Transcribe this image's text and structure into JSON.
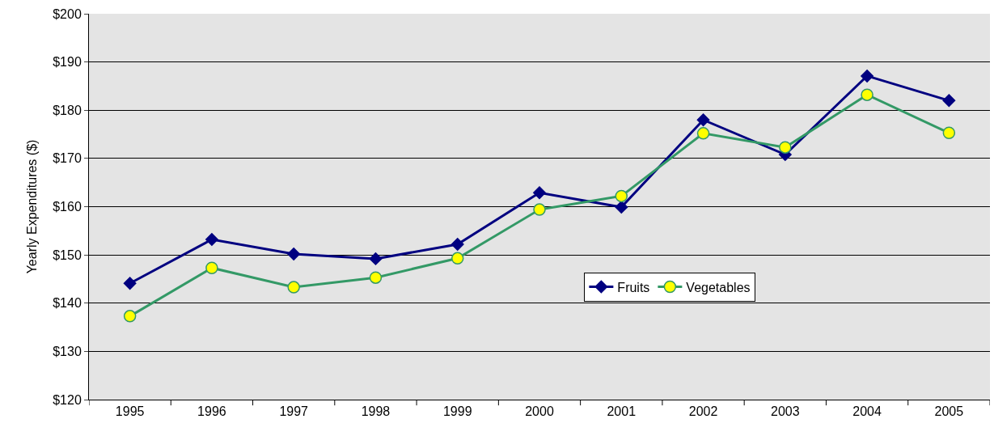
{
  "chart_data": {
    "type": "line",
    "ylabel": "Yearly Expenditures ($)",
    "categories": [
      "1995",
      "1996",
      "1997",
      "1998",
      "1999",
      "2000",
      "2001",
      "2002",
      "2003",
      "2004",
      "2005"
    ],
    "series": [
      {
        "name": "Fruits",
        "color": "#000080",
        "marker": "diamond",
        "values": [
          144.1,
          153.2,
          150.2,
          149.2,
          152.2,
          162.9,
          159.9,
          178.0,
          170.8,
          187.1,
          182.0
        ]
      },
      {
        "name": "Vegetables",
        "color": "#339966",
        "marker": "circle",
        "values": [
          137.3,
          147.3,
          143.3,
          145.3,
          149.3,
          159.4,
          162.2,
          175.2,
          172.3,
          183.2,
          175.3
        ]
      }
    ],
    "ylim": [
      120,
      200
    ],
    "yticks": [
      {
        "value": 120,
        "label": "$120"
      },
      {
        "value": 130,
        "label": "$130"
      },
      {
        "value": 140,
        "label": "$140"
      },
      {
        "value": 150,
        "label": "$150"
      },
      {
        "value": 160,
        "label": "$160"
      },
      {
        "value": 170,
        "label": "$170"
      },
      {
        "value": 180,
        "label": "$180"
      },
      {
        "value": 190,
        "label": "$190"
      },
      {
        "value": 200,
        "label": "$200"
      }
    ],
    "grid": "y",
    "legend": "right",
    "line_style": "solid"
  }
}
